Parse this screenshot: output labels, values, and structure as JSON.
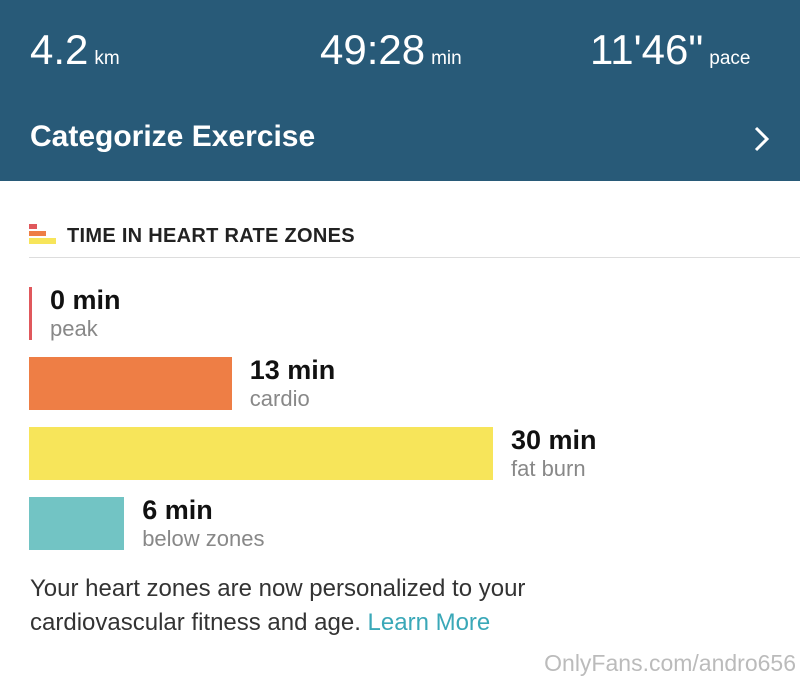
{
  "header": {
    "stats": [
      {
        "value": "4.2",
        "unit": "km"
      },
      {
        "value": "49:28",
        "unit": "min"
      },
      {
        "value": "11'46\"",
        "unit": "pace"
      }
    ],
    "action": "Categorize Exercise"
  },
  "section": {
    "title": "TIME IN HEART RATE ZONES"
  },
  "zones": [
    {
      "value": 0,
      "value_label": "0 min",
      "name": "peak",
      "color": "#e0585c"
    },
    {
      "value": 13,
      "value_label": "13 min",
      "name": "cardio",
      "color": "#ee7e45"
    },
    {
      "value": 30,
      "value_label": "30 min",
      "name": "fat burn",
      "color": "#f7e55a"
    },
    {
      "value": 6,
      "value_label": "6 min",
      "name": "below zones",
      "color": "#72c4c4"
    }
  ],
  "footer": {
    "text": "Your heart zones are now personalized to your cardiovascular fitness and age.",
    "link": "Learn More"
  },
  "watermark": "OnlyFans.com/andro656"
}
